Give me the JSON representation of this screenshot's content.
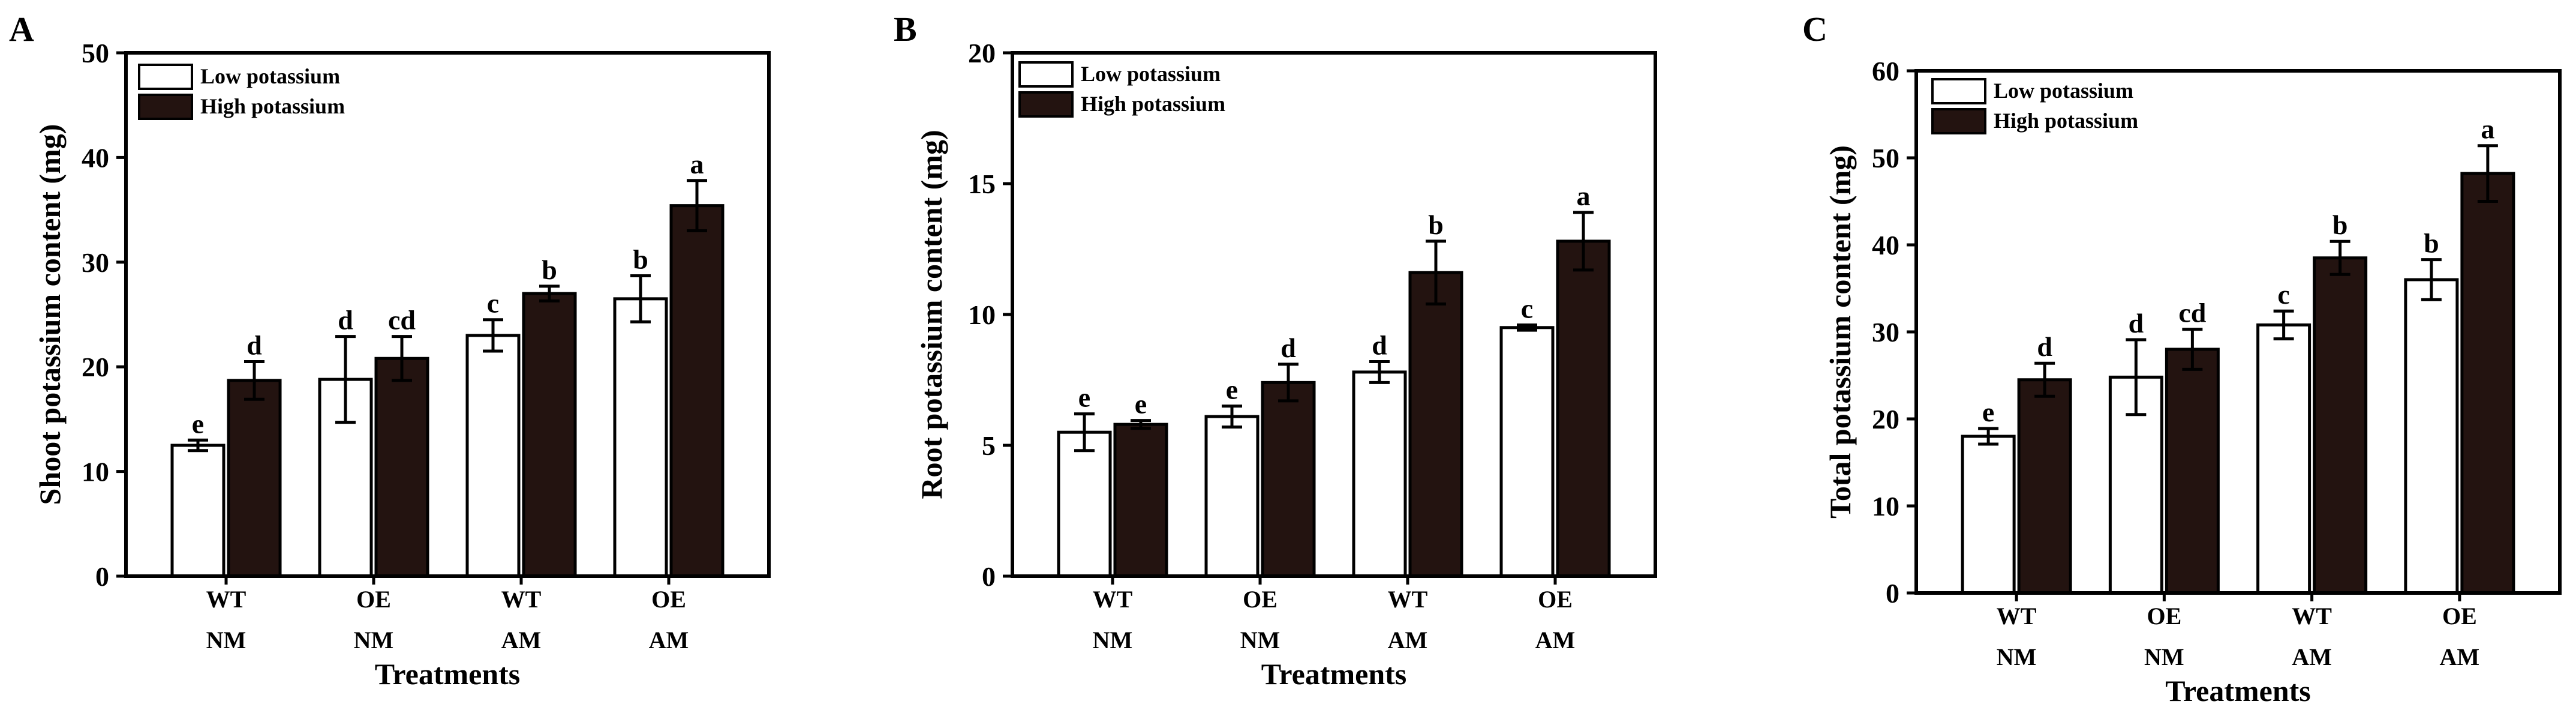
{
  "colors": {
    "low": "#ffffff",
    "high": "#231310",
    "axis": "#000000"
  },
  "chart_data": [
    {
      "type": "bar",
      "panel": "A",
      "ylabel": "Shoot potassium content (mg)",
      "xlabel": "Treatments",
      "ylim": [
        0,
        50
      ],
      "yticks": [
        0,
        10,
        20,
        30,
        40,
        50
      ],
      "categories": [
        {
          "genotype": "WT",
          "mycorrhiza": "NM"
        },
        {
          "genotype": "OE",
          "mycorrhiza": "NM"
        },
        {
          "genotype": "WT",
          "mycorrhiza": "AM"
        },
        {
          "genotype": "OE",
          "mycorrhiza": "AM"
        }
      ],
      "legend_position": "top-left",
      "series": [
        {
          "name": "Low potassium",
          "values": [
            12.5,
            18.8,
            23.0,
            26.5
          ],
          "errors": [
            0.5,
            4.1,
            1.5,
            2.2
          ],
          "letters": [
            "e",
            "d",
            "c",
            "b"
          ]
        },
        {
          "name": "High potassium",
          "values": [
            18.7,
            20.8,
            27.0,
            35.4
          ],
          "errors": [
            1.8,
            2.1,
            0.7,
            2.4
          ],
          "letters": [
            "d",
            "cd",
            "b",
            "a"
          ]
        }
      ]
    },
    {
      "type": "bar",
      "panel": "B",
      "ylabel": "Root potassium content (mg)",
      "xlabel": "Treatments",
      "ylim": [
        0,
        20
      ],
      "yticks": [
        0,
        5,
        10,
        15,
        20
      ],
      "categories": [
        {
          "genotype": "WT",
          "mycorrhiza": "NM"
        },
        {
          "genotype": "OE",
          "mycorrhiza": "NM"
        },
        {
          "genotype": "WT",
          "mycorrhiza": "AM"
        },
        {
          "genotype": "OE",
          "mycorrhiza": "AM"
        }
      ],
      "legend_position": "top-left",
      "series": [
        {
          "name": "Low potassium",
          "values": [
            5.5,
            6.1,
            7.8,
            9.5
          ],
          "errors": [
            0.7,
            0.4,
            0.4,
            0.1
          ],
          "letters": [
            "e",
            "e",
            "d",
            "c"
          ]
        },
        {
          "name": "High potassium",
          "values": [
            5.8,
            7.4,
            11.6,
            12.8
          ],
          "errors": [
            0.15,
            0.7,
            1.2,
            1.1
          ],
          "letters": [
            "e",
            "d",
            "b",
            "a"
          ]
        }
      ]
    },
    {
      "type": "bar",
      "panel": "C",
      "ylabel": "Total potassium content (mg)",
      "xlabel": "Treatments",
      "ylim": [
        0,
        60
      ],
      "yticks": [
        0,
        10,
        20,
        30,
        40,
        50,
        60
      ],
      "categories": [
        {
          "genotype": "WT",
          "mycorrhiza": "NM"
        },
        {
          "genotype": "OE",
          "mycorrhiza": "NM"
        },
        {
          "genotype": "WT",
          "mycorrhiza": "AM"
        },
        {
          "genotype": "OE",
          "mycorrhiza": "AM"
        }
      ],
      "legend_position": "top-left",
      "series": [
        {
          "name": "Low potassium",
          "values": [
            18.0,
            24.8,
            30.8,
            36.0
          ],
          "errors": [
            0.9,
            4.3,
            1.6,
            2.3
          ],
          "letters": [
            "e",
            "d",
            "c",
            "b"
          ]
        },
        {
          "name": "High potassium",
          "values": [
            24.5,
            28.0,
            38.5,
            48.2
          ],
          "errors": [
            1.9,
            2.3,
            1.9,
            3.2
          ],
          "letters": [
            "d",
            "cd",
            "b",
            "a"
          ]
        }
      ]
    }
  ]
}
